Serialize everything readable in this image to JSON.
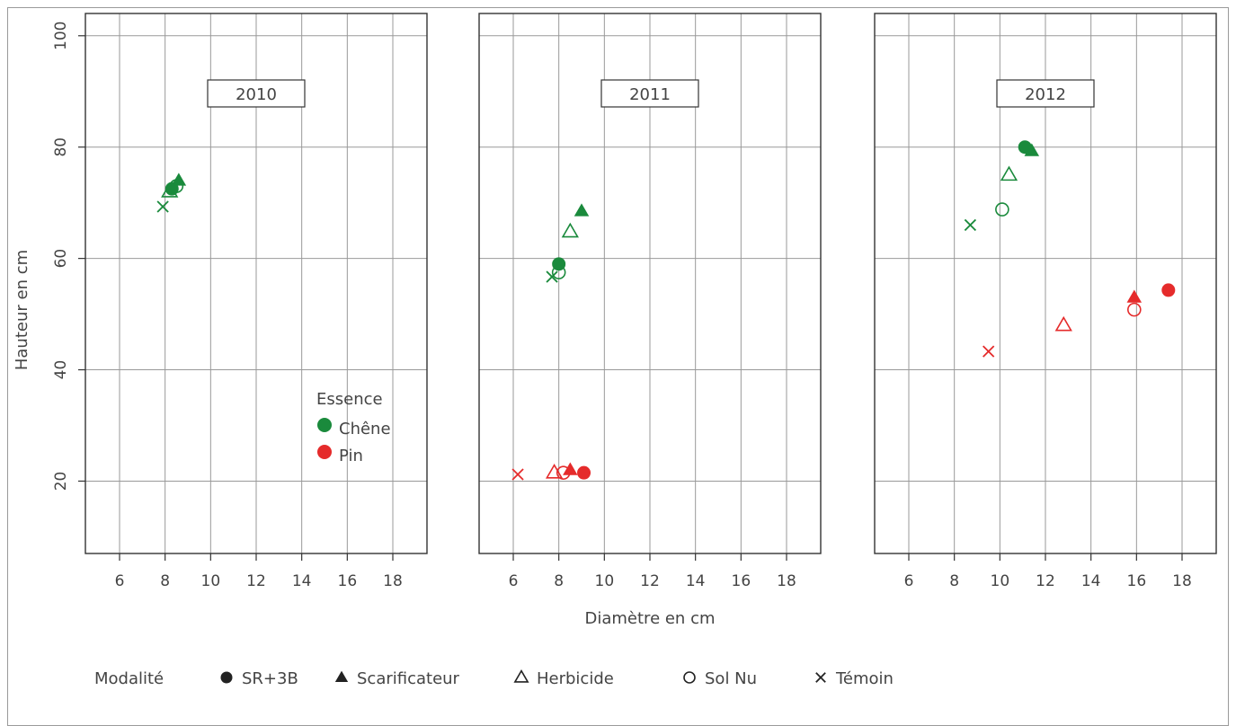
{
  "chart_data": {
    "type": "scatter",
    "xlabel": "Diamètre en cm",
    "ylabel": "Hauteur en cm",
    "xlim": [
      4.5,
      19.5
    ],
    "ylim": [
      7,
      104
    ],
    "xticks": [
      6,
      8,
      10,
      12,
      14,
      16,
      18
    ],
    "yticks": [
      20,
      40,
      60,
      80,
      100
    ],
    "grid": true,
    "colors": {
      "Chêne": "#1a8a3c",
      "Pin": "#e52b2b"
    },
    "essence_legend": {
      "title": "Essence",
      "items": [
        {
          "label": "Chêne",
          "color": "#1a8a3c"
        },
        {
          "label": "Pin",
          "color": "#e52b2b"
        }
      ]
    },
    "modalite_legend": {
      "title": "Modalité",
      "items": [
        {
          "label": "SR+3B",
          "shape": "filled-circle"
        },
        {
          "label": "Scarificateur",
          "shape": "filled-triangle"
        },
        {
          "label": "Herbicide",
          "shape": "open-triangle"
        },
        {
          "label": "Sol Nu",
          "shape": "open-circle"
        },
        {
          "label": "Témoin",
          "shape": "cross"
        }
      ]
    },
    "panels": [
      {
        "label": "2010",
        "points": [
          {
            "essence": "Chêne",
            "modalite": "SR+3B",
            "x": 8.3,
            "y": 72.5
          },
          {
            "essence": "Chêne",
            "modalite": "Scarificateur",
            "x": 8.6,
            "y": 74.0
          },
          {
            "essence": "Chêne",
            "modalite": "Herbicide",
            "x": 8.2,
            "y": 72.0
          },
          {
            "essence": "Chêne",
            "modalite": "Sol Nu",
            "x": 8.5,
            "y": 73.0
          },
          {
            "essence": "Chêne",
            "modalite": "Témoin",
            "x": 7.9,
            "y": 69.3
          }
        ]
      },
      {
        "label": "2011",
        "points": [
          {
            "essence": "Chêne",
            "modalite": "SR+3B",
            "x": 8.0,
            "y": 59.0
          },
          {
            "essence": "Chêne",
            "modalite": "Scarificateur",
            "x": 9.0,
            "y": 68.5
          },
          {
            "essence": "Chêne",
            "modalite": "Herbicide",
            "x": 8.5,
            "y": 64.8
          },
          {
            "essence": "Chêne",
            "modalite": "Sol Nu",
            "x": 8.0,
            "y": 57.5
          },
          {
            "essence": "Chêne",
            "modalite": "Témoin",
            "x": 7.7,
            "y": 56.7
          },
          {
            "essence": "Pin",
            "modalite": "SR+3B",
            "x": 9.1,
            "y": 21.5
          },
          {
            "essence": "Pin",
            "modalite": "Scarificateur",
            "x": 8.5,
            "y": 22.0
          },
          {
            "essence": "Pin",
            "modalite": "Herbicide",
            "x": 7.8,
            "y": 21.5
          },
          {
            "essence": "Pin",
            "modalite": "Sol Nu",
            "x": 8.2,
            "y": 21.5
          },
          {
            "essence": "Pin",
            "modalite": "Témoin",
            "x": 6.2,
            "y": 21.2
          }
        ]
      },
      {
        "label": "2012",
        "points": [
          {
            "essence": "Chêne",
            "modalite": "SR+3B",
            "x": 11.1,
            "y": 80.0
          },
          {
            "essence": "Chêne",
            "modalite": "Scarificateur",
            "x": 11.4,
            "y": 79.3
          },
          {
            "essence": "Chêne",
            "modalite": "Herbicide",
            "x": 10.4,
            "y": 75.0
          },
          {
            "essence": "Chêne",
            "modalite": "Sol Nu",
            "x": 10.1,
            "y": 68.8
          },
          {
            "essence": "Chêne",
            "modalite": "Témoin",
            "x": 8.7,
            "y": 66.0
          },
          {
            "essence": "Pin",
            "modalite": "SR+3B",
            "x": 17.4,
            "y": 54.3
          },
          {
            "essence": "Pin",
            "modalite": "Scarificateur",
            "x": 15.9,
            "y": 53.0
          },
          {
            "essence": "Pin",
            "modalite": "Herbicide",
            "x": 12.8,
            "y": 48.0
          },
          {
            "essence": "Pin",
            "modalite": "Sol Nu",
            "x": 15.9,
            "y": 50.8
          },
          {
            "essence": "Pin",
            "modalite": "Témoin",
            "x": 9.5,
            "y": 43.3
          }
        ]
      }
    ]
  }
}
